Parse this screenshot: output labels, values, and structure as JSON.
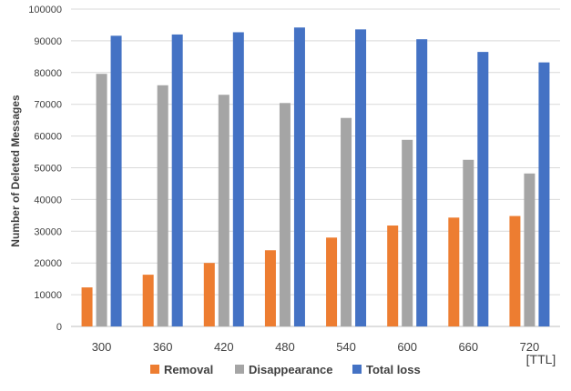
{
  "chart_data": {
    "type": "bar",
    "title": "",
    "xlabel": "[TTL]",
    "ylabel": "Number of Deleted Messages",
    "ylim": [
      0,
      100000
    ],
    "y_ticks": [
      0,
      10000,
      20000,
      30000,
      40000,
      50000,
      60000,
      70000,
      80000,
      90000,
      100000
    ],
    "grid": true,
    "legend_position": "bottom",
    "categories": [
      "300",
      "360",
      "420",
      "480",
      "540",
      "600",
      "660",
      "720"
    ],
    "series": [
      {
        "name": "Removal",
        "color": "#ED7D31",
        "values": [
          12300,
          16300,
          20000,
          24000,
          28000,
          31800,
          34300,
          34800
        ]
      },
      {
        "name": "Disappearance",
        "color": "#A5A5A5",
        "values": [
          79600,
          76000,
          73000,
          70400,
          65700,
          58800,
          52500,
          48200
        ]
      },
      {
        "name": "Total loss",
        "color": "#4472C4",
        "values": [
          91600,
          92000,
          92700,
          94200,
          93600,
          90500,
          86500,
          83200
        ]
      }
    ]
  }
}
